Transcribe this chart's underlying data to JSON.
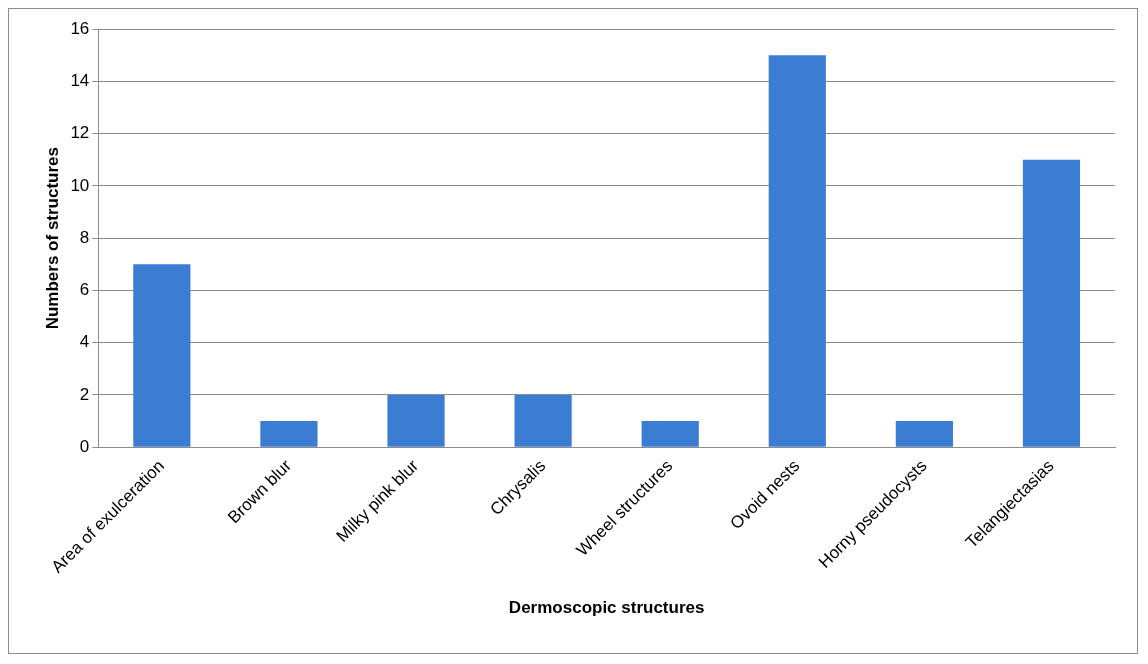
{
  "chart_data": {
    "type": "bar",
    "xlabel": "Dermoscopic structures",
    "ylabel": "Numbers of structures",
    "categories": [
      "Area of exulceration",
      "Brown blur",
      "Milky pink blur",
      "Chrysalis",
      "Wheel structures",
      "Ovoid nests",
      "Horny pseudocysts",
      "Telangiectasias"
    ],
    "values": [
      7,
      1,
      2,
      2,
      1,
      15,
      1,
      11
    ],
    "color": "#3b7dd3",
    "ylim": [
      0,
      16
    ],
    "yticks": [
      0,
      2,
      4,
      6,
      8,
      10,
      12,
      14,
      16
    ],
    "grid": "y",
    "legend": false
  }
}
